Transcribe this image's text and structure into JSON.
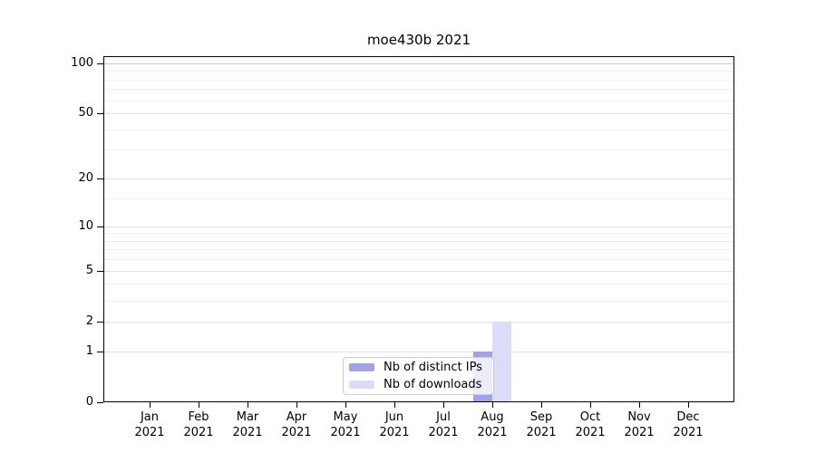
{
  "chart_data": {
    "type": "bar",
    "title": "moe430b 2021",
    "categories": [
      "Jan",
      "Feb",
      "Mar",
      "Apr",
      "May",
      "Jun",
      "Jul",
      "Aug",
      "Sep",
      "Oct",
      "Nov",
      "Dec"
    ],
    "category_year": "2021",
    "series": [
      {
        "name": "Nb of distinct IPs",
        "color": "#a2a2ec",
        "values": [
          0,
          0,
          0,
          0,
          0,
          0,
          0,
          1,
          0,
          0,
          0,
          0
        ]
      },
      {
        "name": "Nb of downloads",
        "color": "#dcdcf8",
        "values": [
          0,
          0,
          0,
          0,
          0,
          0,
          0,
          2,
          0,
          0,
          0,
          0
        ]
      }
    ],
    "xlabel": "",
    "ylabel": "",
    "y_axis": {
      "scale": "log1p",
      "major_ticks": [
        0,
        1,
        2,
        5,
        10,
        20,
        50,
        100
      ],
      "minor_ticks": [
        3,
        4,
        6,
        7,
        8,
        9,
        15,
        30,
        40,
        60,
        70,
        80,
        90
      ],
      "max": 110
    },
    "ylim": [
      0,
      110
    ],
    "grid": {
      "on": true,
      "major_color": "#e3e3e3",
      "minor_color": "#efefef",
      "hundred_line_color": "#c9c9c9"
    },
    "legend_position": "lower-center",
    "axis_color": "#000000",
    "background_color": "#ffffff"
  }
}
